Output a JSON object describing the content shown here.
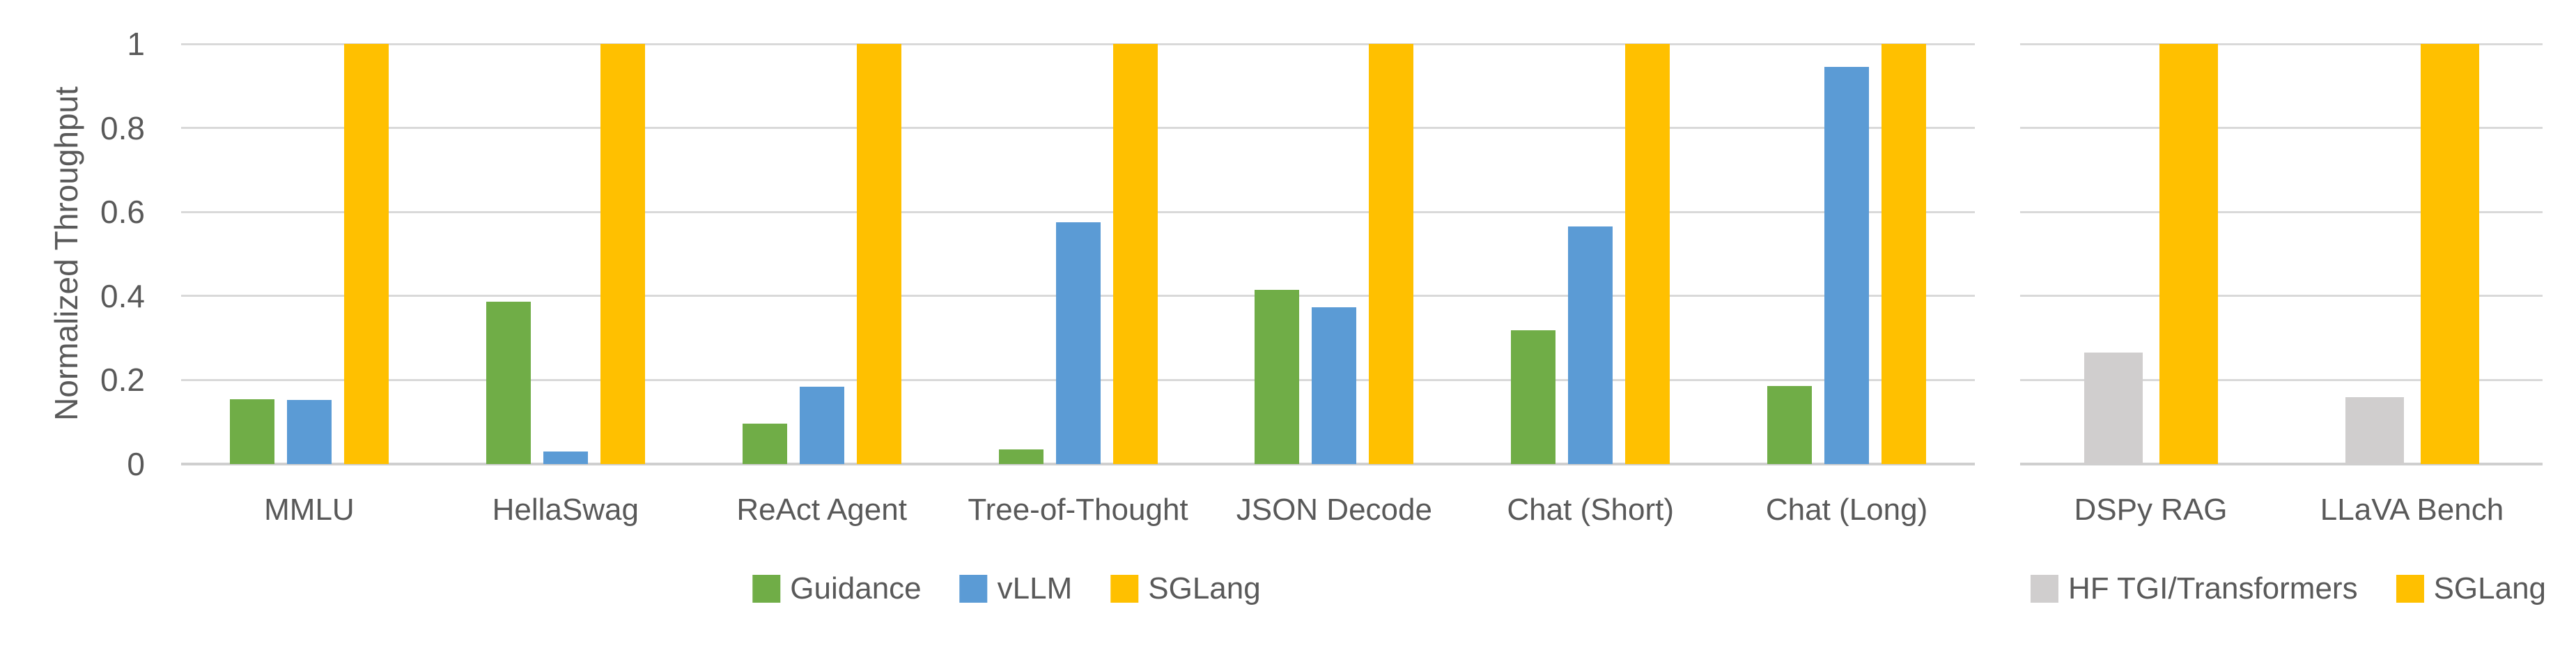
{
  "y_axis": {
    "title": "Normalized Throughput",
    "ticks": [
      "1",
      "0.8",
      "0.6",
      "0.4",
      "0.2",
      "0"
    ],
    "tick_values": [
      1,
      0.8,
      0.6,
      0.4,
      0.2,
      0
    ],
    "min": 0,
    "max": 1
  },
  "colors": {
    "guidance_green": "#70AD47",
    "vllm_blue": "#5B9BD5",
    "sglang_yellow": "#FFC000",
    "hf_gray": "#D0CECE",
    "text_gray": "#595959",
    "gridline_gray": "#D9D9D9"
  },
  "chart_data": [
    {
      "type": "bar",
      "title": "",
      "ylabel": "Normalized Throughput",
      "ylim": [
        0,
        1
      ],
      "grid": true,
      "legend_position": "bottom",
      "categories": [
        "MMLU",
        "HellaSwag",
        "ReAct Agent",
        "Tree-of-Thought",
        "JSON Decode",
        "Chat (Short)",
        "Chat (Long)"
      ],
      "series": [
        {
          "name": "Guidance",
          "color": "#70AD47",
          "values": [
            0.154,
            0.387,
            0.096,
            0.034,
            0.415,
            0.318,
            0.186
          ]
        },
        {
          "name": "vLLM",
          "color": "#5B9BD5",
          "values": [
            0.153,
            0.03,
            0.184,
            0.576,
            0.373,
            0.565,
            0.945
          ]
        },
        {
          "name": "SGLang",
          "color": "#FFC000",
          "values": [
            1,
            1,
            1,
            1,
            1,
            1,
            1
          ]
        }
      ]
    },
    {
      "type": "bar",
      "title": "",
      "ylabel": "Normalized Throughput",
      "ylim": [
        0,
        1
      ],
      "grid": true,
      "legend_position": "bottom",
      "categories": [
        "DSPy RAG",
        "LLaVA Bench"
      ],
      "series": [
        {
          "name": "HF TGI/Transformers",
          "color": "#D0CECE",
          "values": [
            0.266,
            0.159
          ]
        },
        {
          "name": "SGLang",
          "color": "#FFC000",
          "values": [
            1,
            1
          ]
        }
      ]
    }
  ]
}
